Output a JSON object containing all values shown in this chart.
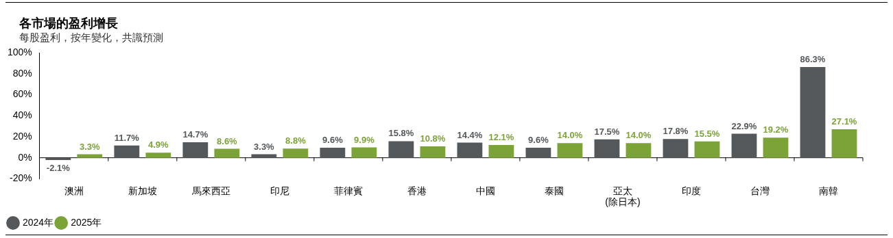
{
  "chart_data": {
    "type": "bar",
    "title": "各市場的盈利增長",
    "subtitle": "每股盈利，按年變化，共識預測",
    "categories": [
      "澳洲",
      "新加坡",
      "馬來西亞",
      "印尼",
      "菲律賓",
      "香港",
      "中國",
      "泰國",
      "亞太\n(除日本)",
      "印度",
      "台灣",
      "南韓"
    ],
    "series": [
      {
        "name": "2024年",
        "color": "#54585a",
        "values": [
          -2.1,
          11.7,
          14.7,
          3.3,
          9.6,
          15.8,
          14.4,
          9.6,
          17.5,
          17.8,
          22.9,
          86.3
        ],
        "value_labels": [
          "-2.1%",
          "11.7%",
          "14.7%",
          "3.3%",
          "9.6%",
          "15.8%",
          "14.4%",
          "9.6%",
          "17.5%",
          "17.8%",
          "22.9%",
          "86.3%"
        ]
      },
      {
        "name": "2025年",
        "color": "#7ba338",
        "values": [
          3.3,
          4.9,
          8.6,
          8.8,
          9.9,
          10.8,
          12.1,
          14.0,
          14.0,
          15.5,
          19.2,
          27.1
        ],
        "value_labels": [
          "3.3%",
          "4.9%",
          "8.6%",
          "8.8%",
          "9.9%",
          "10.8%",
          "12.1%",
          "14.0%",
          "14.0%",
          "15.5%",
          "19.2%",
          "27.1%"
        ]
      }
    ],
    "ylim": [
      -20,
      100
    ],
    "yticks": [
      {
        "value": -20,
        "label": "-20%"
      },
      {
        "value": 0,
        "label": "0%"
      },
      {
        "value": 20,
        "label": "20%"
      },
      {
        "value": 40,
        "label": "40%"
      },
      {
        "value": 60,
        "label": "60%"
      },
      {
        "value": 80,
        "label": "80%"
      },
      {
        "value": 100,
        "label": "100%"
      }
    ],
    "legend": "bottom left"
  }
}
